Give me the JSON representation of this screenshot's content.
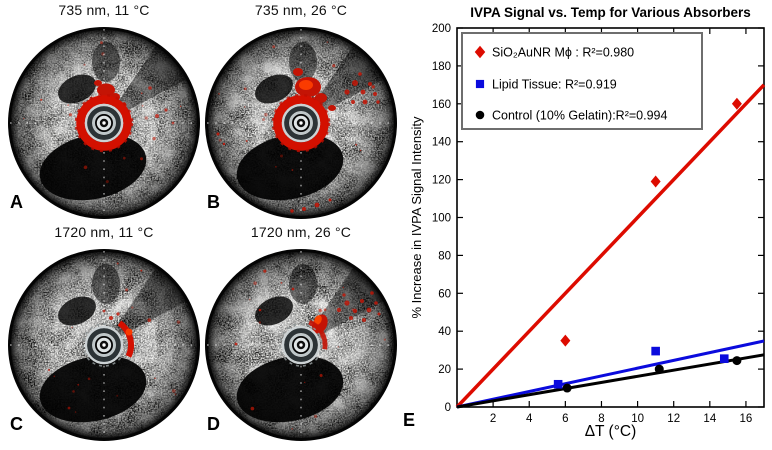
{
  "figure": {
    "panels": [
      {
        "id": "A",
        "title": "735 nm, 11 °C"
      },
      {
        "id": "B",
        "title": "735 nm, 26 °C"
      },
      {
        "id": "C",
        "title": "1720 nm, 11 °C"
      },
      {
        "id": "D",
        "title": "1720 nm, 26 °C"
      }
    ],
    "chart_letter": "E"
  },
  "chart_data": {
    "type": "scatter",
    "title": "IVPA Signal vs. Temp for Various Absorbers",
    "xlabel": "ΔT (°C)",
    "ylabel": "% Increase in IVPA Signal Intensity",
    "xlim": [
      0,
      17
    ],
    "ylim": [
      0,
      200
    ],
    "x_ticks": [
      2,
      4,
      6,
      8,
      10,
      12,
      14,
      16
    ],
    "y_ticks": [
      0,
      20,
      40,
      60,
      80,
      100,
      120,
      140,
      160,
      180,
      200
    ],
    "grid": false,
    "legend_position": "upper-left",
    "series": [
      {
        "name": "SiO₂AuNR Mϕ : R²=0.980",
        "marker": "diamond",
        "color": "#dd0b00",
        "points": [
          [
            6,
            35
          ],
          [
            11,
            119
          ],
          [
            15.5,
            160
          ]
        ],
        "fit": {
          "through_origin": true,
          "slope": 10.0,
          "r2": 0.98
        }
      },
      {
        "name": "Lipid Tissue:  R²=0.919",
        "marker": "square",
        "color": "#0b0bdd",
        "points": [
          [
            5.6,
            12
          ],
          [
            11,
            29.5
          ],
          [
            14.8,
            25.5
          ]
        ],
        "fit": {
          "through_origin": true,
          "slope": 2.05,
          "r2": 0.919
        }
      },
      {
        "name": "Control (10% Gelatin):R²=0.994",
        "marker": "circle",
        "color": "#000000",
        "points": [
          [
            6.1,
            10
          ],
          [
            11.2,
            20
          ],
          [
            15.5,
            24.5
          ]
        ],
        "fit": {
          "through_origin": true,
          "slope": 1.62,
          "r2": 0.994
        }
      }
    ]
  }
}
